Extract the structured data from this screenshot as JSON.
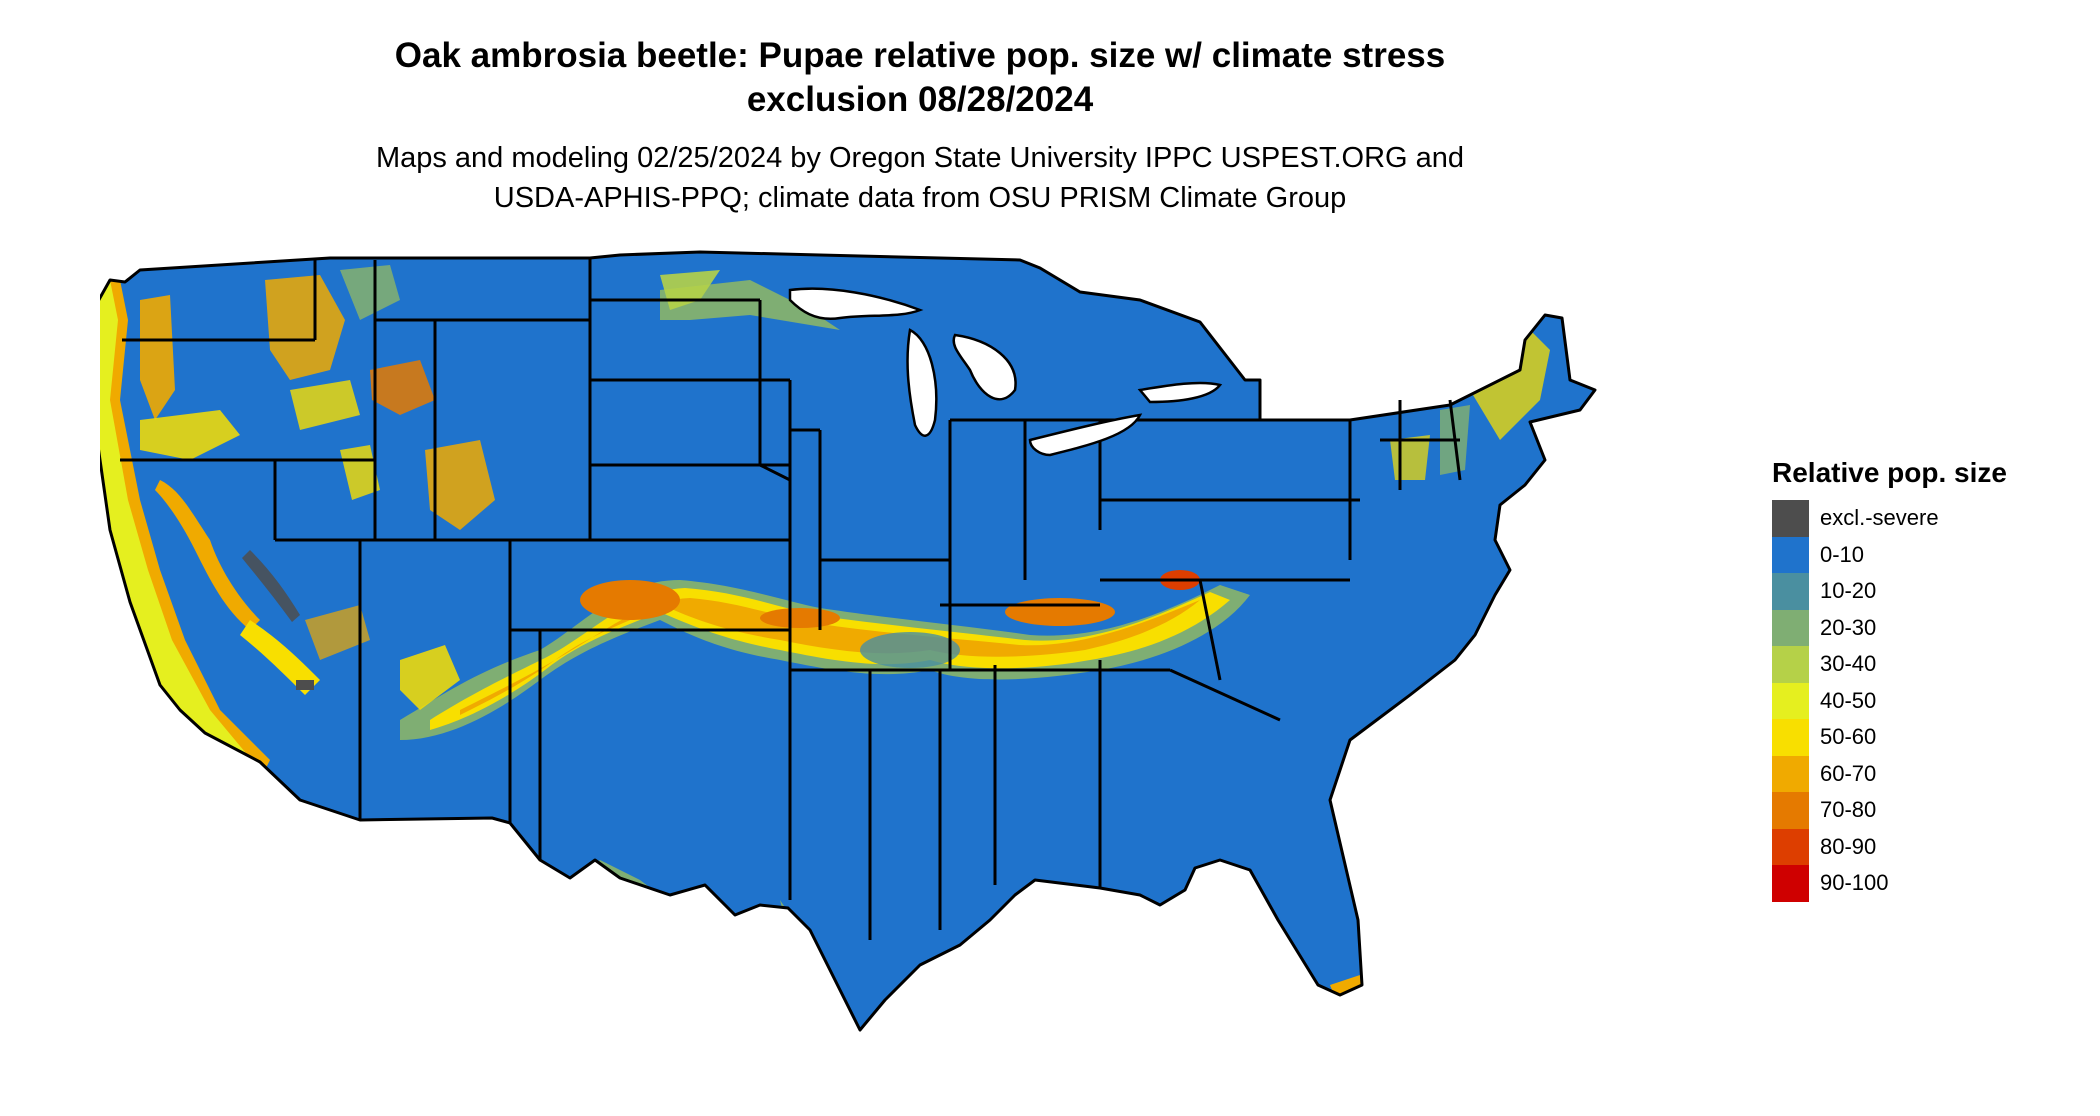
{
  "title_line1": "Oak ambrosia beetle: Pupae relative pop. size w/ climate stress",
  "title_line2": "exclusion 08/28/2024",
  "subtitle_line1": "Maps and modeling 02/25/2024 by Oregon State University IPPC USPEST.ORG and",
  "subtitle_line2": "USDA-APHIS-PPQ; climate data from OSU PRISM Climate Group",
  "legend": {
    "title": "Relative pop. size",
    "items": [
      {
        "label": "excl.-severe",
        "color": "#4d4d4d"
      },
      {
        "label": "0-10",
        "color": "#1f73cc"
      },
      {
        "label": "10-20",
        "color": "#4a8fa0"
      },
      {
        "label": "20-30",
        "color": "#7fae73"
      },
      {
        "label": "30-40",
        "color": "#b5d148"
      },
      {
        "label": "40-50",
        "color": "#e5ef1f"
      },
      {
        "label": "50-60",
        "color": "#f8df00"
      },
      {
        "label": "60-70",
        "color": "#f0aa00"
      },
      {
        "label": "70-80",
        "color": "#e57a00"
      },
      {
        "label": "80-90",
        "color": "#dd3e00"
      },
      {
        "label": "90-100",
        "color": "#cf0000"
      }
    ]
  },
  "colors": {
    "base": "#1f73cc",
    "borders": "#000000"
  }
}
